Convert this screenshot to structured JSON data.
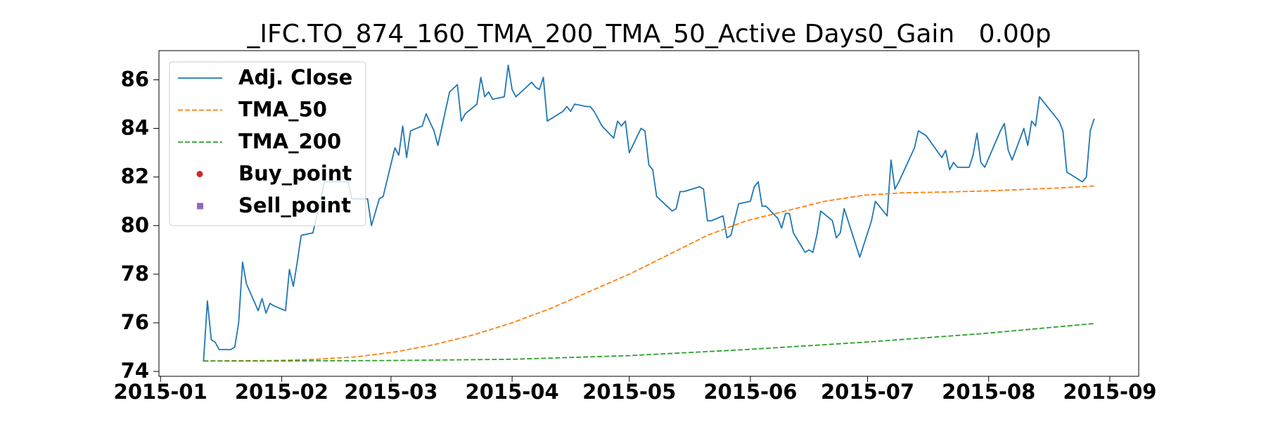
{
  "chart_data": {
    "type": "line",
    "title": "_IFC.TO_874_160_TMA_200_TMA_50_Active Days0_Gain   0.00p",
    "xlim": [
      -0.4,
      250.4
    ],
    "ylim": [
      73.8,
      87.2
    ],
    "xticks": [
      {
        "value": 0,
        "label": "2015-01"
      },
      {
        "value": 31,
        "label": "2015-02"
      },
      {
        "value": 59,
        "label": "2015-03"
      },
      {
        "value": 90,
        "label": "2015-04"
      },
      {
        "value": 120,
        "label": "2015-05"
      },
      {
        "value": 151,
        "label": "2015-06"
      },
      {
        "value": 181,
        "label": "2015-07"
      },
      {
        "value": 212,
        "label": "2015-08"
      },
      {
        "value": 243,
        "label": "2015-09"
      }
    ],
    "yticks": [
      74,
      76,
      78,
      80,
      82,
      84,
      86
    ],
    "grid": false,
    "legend": "upper left",
    "series": [
      {
        "name": "Adj. Close",
        "color": "#1f77b4",
        "linestyle": "solid",
        "x": [
          11,
          12,
          13,
          14,
          15,
          18,
          19,
          20,
          21,
          22,
          25,
          26,
          27,
          28,
          29,
          32,
          33,
          34,
          35,
          36,
          39,
          42,
          48,
          49,
          53,
          54,
          56,
          57,
          60,
          61,
          62,
          63,
          64,
          67,
          68,
          70,
          71,
          74,
          76,
          77,
          78,
          81,
          82,
          83,
          84,
          85,
          88,
          89,
          90,
          91,
          95,
          96,
          97,
          98,
          99,
          103,
          104,
          105,
          106,
          109,
          110,
          111,
          113,
          116,
          117,
          118,
          119,
          120,
          123,
          124,
          125,
          126,
          127,
          131,
          132,
          133,
          134,
          138,
          139,
          140,
          141,
          144,
          145,
          146,
          148,
          151,
          152,
          153,
          154,
          155,
          158,
          159,
          160,
          161,
          162,
          165,
          166,
          167,
          168,
          169,
          172,
          173,
          174,
          175,
          179,
          182,
          183,
          186,
          187,
          188,
          189,
          193,
          194,
          196,
          200,
          201,
          202,
          203,
          204,
          207,
          208,
          209,
          210,
          211,
          215,
          216,
          217,
          218,
          221,
          222,
          223,
          224,
          225,
          229,
          230,
          231,
          232,
          235,
          236,
          237,
          238,
          239
        ],
        "values": [
          74.4,
          76.9,
          75.3,
          75.2,
          74.9,
          74.9,
          75.0,
          76.0,
          78.5,
          77.6,
          76.5,
          77.0,
          76.4,
          76.8,
          76.7,
          76.5,
          78.2,
          77.5,
          78.5,
          79.6,
          79.7,
          81.8,
          81.8,
          81.1,
          81.1,
          80.0,
          81.1,
          81.2,
          83.2,
          82.9,
          84.1,
          82.8,
          83.9,
          84.1,
          84.6,
          83.9,
          83.3,
          85.5,
          85.8,
          84.3,
          84.6,
          85.0,
          86.1,
          85.3,
          85.5,
          85.2,
          85.3,
          86.6,
          85.6,
          85.3,
          85.9,
          85.7,
          85.6,
          86.1,
          84.3,
          84.7,
          84.9,
          84.7,
          85.0,
          84.9,
          84.9,
          84.7,
          84.1,
          83.6,
          84.3,
          84.1,
          84.3,
          83.0,
          84.0,
          83.9,
          82.5,
          82.3,
          81.2,
          80.6,
          80.7,
          81.4,
          81.4,
          81.6,
          81.5,
          80.2,
          80.2,
          80.4,
          79.5,
          79.6,
          80.9,
          81.0,
          81.6,
          81.8,
          80.8,
          80.8,
          80.3,
          79.9,
          80.5,
          80.5,
          79.7,
          78.9,
          79.0,
          78.9,
          79.6,
          80.6,
          80.2,
          79.5,
          79.7,
          80.7,
          78.7,
          80.2,
          81.0,
          80.4,
          82.7,
          81.5,
          81.8,
          83.2,
          83.9,
          83.7,
          82.8,
          83.1,
          82.3,
          82.6,
          82.4,
          82.4,
          82.9,
          83.8,
          82.6,
          82.4,
          83.9,
          84.2,
          83.1,
          82.7,
          84.0,
          83.3,
          84.3,
          84.1,
          85.3,
          84.5,
          84.3,
          83.9,
          82.2,
          81.9,
          81.8,
          82.0,
          83.9,
          84.4
        ]
      },
      {
        "name": "TMA_50",
        "color": "#ff7f0e",
        "linestyle": "dashed",
        "x": [
          11,
          20,
          30,
          40,
          50,
          60,
          70,
          80,
          90,
          100,
          110,
          120,
          130,
          140,
          150,
          160,
          170,
          180,
          190,
          200,
          210,
          220,
          230,
          239
        ],
        "values": [
          74.43,
          74.44,
          74.45,
          74.5,
          74.6,
          74.8,
          75.1,
          75.5,
          76.0,
          76.6,
          77.3,
          78.0,
          78.8,
          79.6,
          80.2,
          80.6,
          81.0,
          81.25,
          81.35,
          81.38,
          81.42,
          81.48,
          81.55,
          81.63
        ]
      },
      {
        "name": "TMA_200",
        "color": "#2ca02c",
        "linestyle": "dashed",
        "x": [
          11,
          30,
          60,
          90,
          120,
          150,
          180,
          210,
          239
        ],
        "values": [
          74.43,
          74.43,
          74.45,
          74.5,
          74.65,
          74.9,
          75.2,
          75.55,
          75.97
        ]
      },
      {
        "name": "Buy_point",
        "color": "#d62728",
        "marker": "circle",
        "x": [],
        "values": []
      },
      {
        "name": "Sell_point",
        "color": "#9467bd",
        "marker": "square",
        "x": [],
        "values": []
      }
    ]
  }
}
